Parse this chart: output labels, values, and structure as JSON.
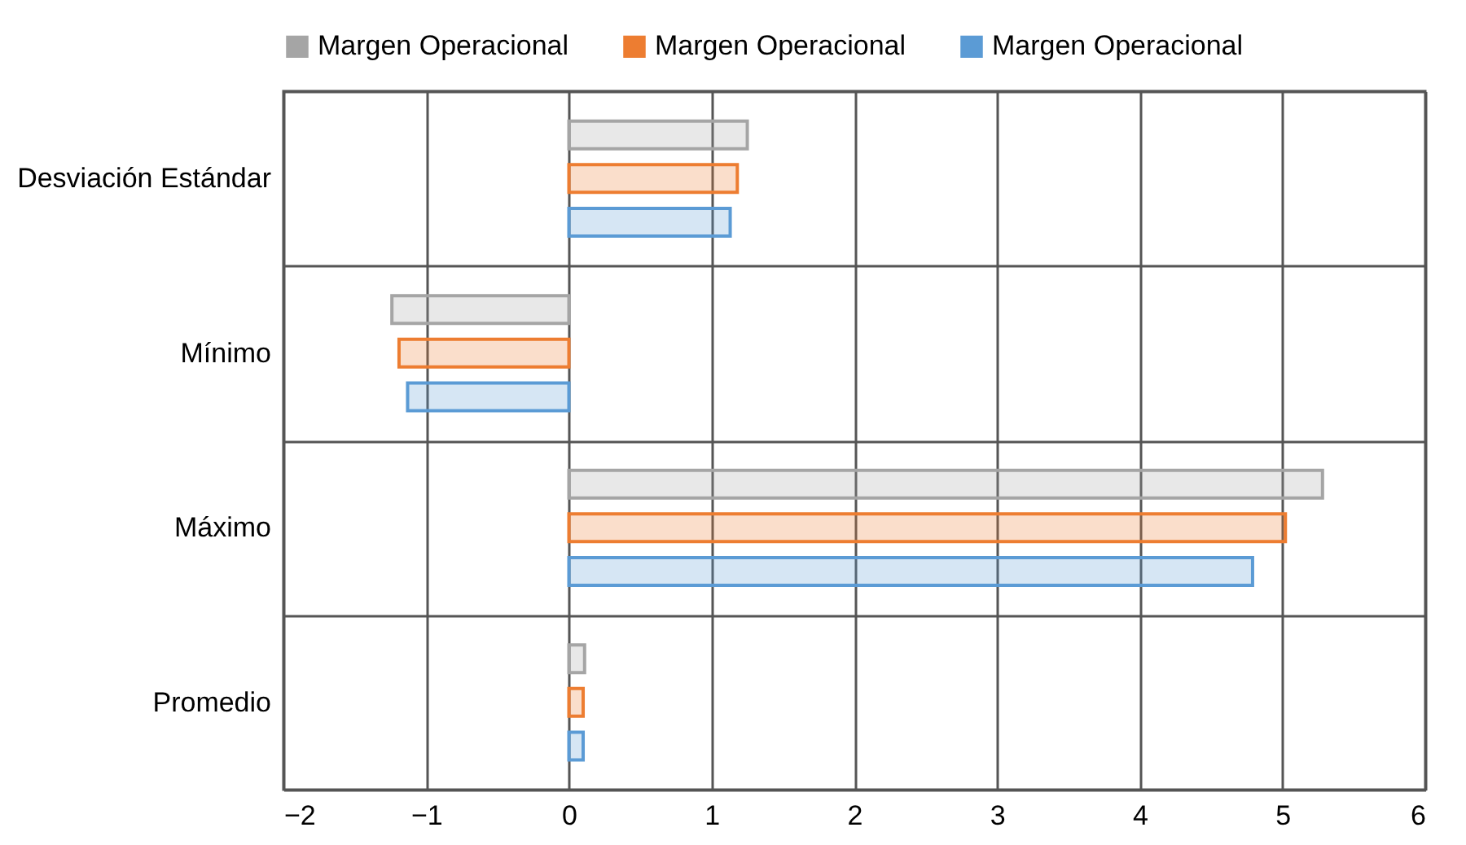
{
  "chart_data": {
    "type": "bar",
    "orientation": "horizontal",
    "categories": [
      "Desviación Estándar",
      "Mínimo",
      "Máximo",
      "Promedio"
    ],
    "series": [
      {
        "name": "Margen Operacional",
        "color": "#a5a5a5",
        "values": [
          1.25,
          -1.24,
          5.28,
          0.11
        ]
      },
      {
        "name": "Margen Operacional",
        "color": "#ed7d31",
        "values": [
          1.18,
          -1.19,
          5.02,
          0.1
        ]
      },
      {
        "name": "Margen Operacional",
        "color": "#5b9bd5",
        "values": [
          1.13,
          -1.13,
          4.79,
          0.1
        ]
      }
    ],
    "xlim": [
      -2,
      6
    ],
    "xticks": [
      -2,
      -1,
      0,
      1,
      2,
      3,
      4,
      5,
      6
    ],
    "grid": true,
    "legend": "top"
  }
}
